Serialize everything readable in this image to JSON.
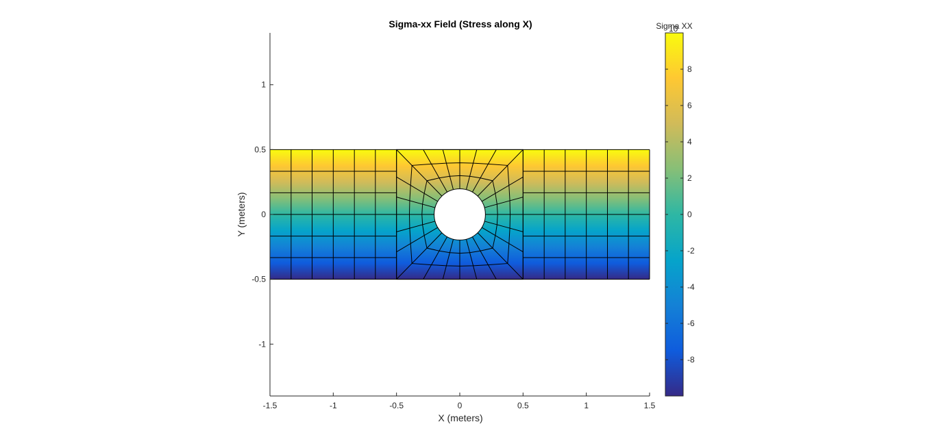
{
  "chart_data": {
    "type": "heatmap",
    "title": "Sigma-xx Field (Stress along X)",
    "xlabel": "X (meters)",
    "ylabel": "Y (meters)",
    "xlim": [
      -1.5,
      1.5
    ],
    "ylim": [
      -1.4,
      1.4
    ],
    "xticks": [
      -1.5,
      -1,
      -0.5,
      0,
      0.5,
      1,
      1.5
    ],
    "xtick_labels": [
      "-1.5",
      "-1",
      "-0.5",
      "0",
      "0.5",
      "1",
      "1.5"
    ],
    "yticks": [
      -1,
      -0.5,
      0,
      0.5,
      1
    ],
    "ytick_labels": [
      "-1",
      "-0.5",
      "0",
      "0.5",
      "1"
    ],
    "field": "Sigma XX = 20 * y (linear gradient in y)",
    "domain": {
      "x": [
        -1.5,
        1.5
      ],
      "y": [
        -0.5,
        0.5
      ]
    },
    "hole": {
      "center": [
        0,
        0
      ],
      "radius": 0.2
    },
    "mesh": {
      "outer_x_nodes": [
        -1.5,
        -1.333,
        -1.167,
        -1.0,
        -0.833,
        -0.667,
        -0.5
      ],
      "y_nodes": [
        -0.5,
        -0.333,
        -0.167,
        0,
        0.167,
        0.333,
        0.5
      ],
      "ring_radii_fraction": [
        0,
        0.33,
        0.66,
        1.0
      ],
      "radial_spokes": 24
    },
    "colorbar": {
      "label": "Sigma XX",
      "exponent_label": "10",
      "range": [
        -10,
        10
      ],
      "ticks": [
        -8,
        -6,
        -4,
        -2,
        0,
        2,
        4,
        6,
        8
      ],
      "tick_labels": [
        "-8",
        "-6",
        "-4",
        "-2",
        "0",
        "2",
        "4",
        "6",
        "8"
      ],
      "colormap": "parula",
      "colormap_stops": [
        "#352a87",
        "#0f5cdd",
        "#1481d6",
        "#06a4ca",
        "#2eb7a4",
        "#87bf77",
        "#d1bb59",
        "#fec832",
        "#f9fb0e"
      ]
    },
    "grid": false,
    "aspect": "equal"
  }
}
